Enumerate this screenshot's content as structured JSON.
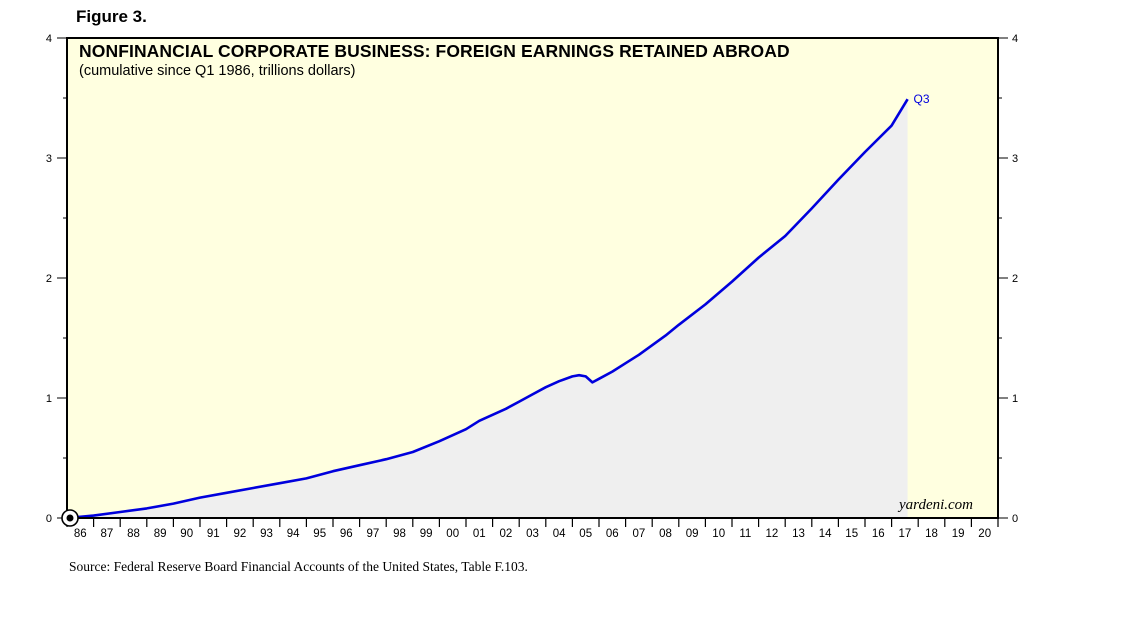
{
  "figure_label": "Figure 3.",
  "source": "Source: Federal Reserve Board Financial Accounts of the United States, Table F.103.",
  "brand": "yardeni.com",
  "colors": {
    "plot_bg": "#ffffe0",
    "line": "#0000dd",
    "area": "#efefef",
    "frame": "#000000"
  },
  "chart_data": {
    "type": "area",
    "title": "NONFINANCIAL CORPORATE BUSINESS: FOREIGN EARNINGS RETAINED ABROAD",
    "subtitle": "(cumulative since Q1 1986, trillions dollars)",
    "xlabel": "",
    "ylabel": "",
    "xlim": [
      1986,
      2021
    ],
    "ylim": [
      0,
      4
    ],
    "y_ticks": [
      "0",
      "1",
      "2",
      "3",
      "4"
    ],
    "x_ticks": [
      "86",
      "87",
      "88",
      "89",
      "90",
      "91",
      "92",
      "93",
      "94",
      "95",
      "96",
      "97",
      "98",
      "99",
      "00",
      "01",
      "02",
      "03",
      "04",
      "05",
      "06",
      "07",
      "08",
      "09",
      "10",
      "11",
      "12",
      "13",
      "14",
      "15",
      "16",
      "17",
      "18",
      "19",
      "20"
    ],
    "end_label": "Q3",
    "grid": false,
    "series": [
      {
        "x": [
          1986.0,
          1987.0,
          1988.0,
          1989.0,
          1990.0,
          1991.0,
          1992.0,
          1993.0,
          1994.0,
          1995.0,
          1996.0,
          1997.0,
          1998.0,
          1999.0,
          2000.0,
          2001.0,
          2001.5,
          2002.0,
          2002.5,
          2003.0,
          2003.5,
          2004.0,
          2004.5,
          2005.0,
          2005.25,
          2005.5,
          2005.75,
          2006.0,
          2006.5,
          2007.0,
          2007.5,
          2008.0,
          2008.5,
          2009.0,
          2010.0,
          2011.0,
          2012.0,
          2013.0,
          2014.0,
          2015.0,
          2016.0,
          2017.0,
          2017.6
        ],
        "y": [
          0.0,
          0.02,
          0.05,
          0.08,
          0.12,
          0.17,
          0.21,
          0.25,
          0.29,
          0.33,
          0.39,
          0.44,
          0.49,
          0.55,
          0.64,
          0.74,
          0.81,
          0.86,
          0.91,
          0.97,
          1.03,
          1.09,
          1.14,
          1.18,
          1.19,
          1.18,
          1.13,
          1.16,
          1.22,
          1.29,
          1.36,
          1.44,
          1.52,
          1.61,
          1.78,
          1.97,
          2.17,
          2.35,
          2.58,
          2.82,
          3.05,
          3.27,
          3.49
        ]
      }
    ]
  }
}
